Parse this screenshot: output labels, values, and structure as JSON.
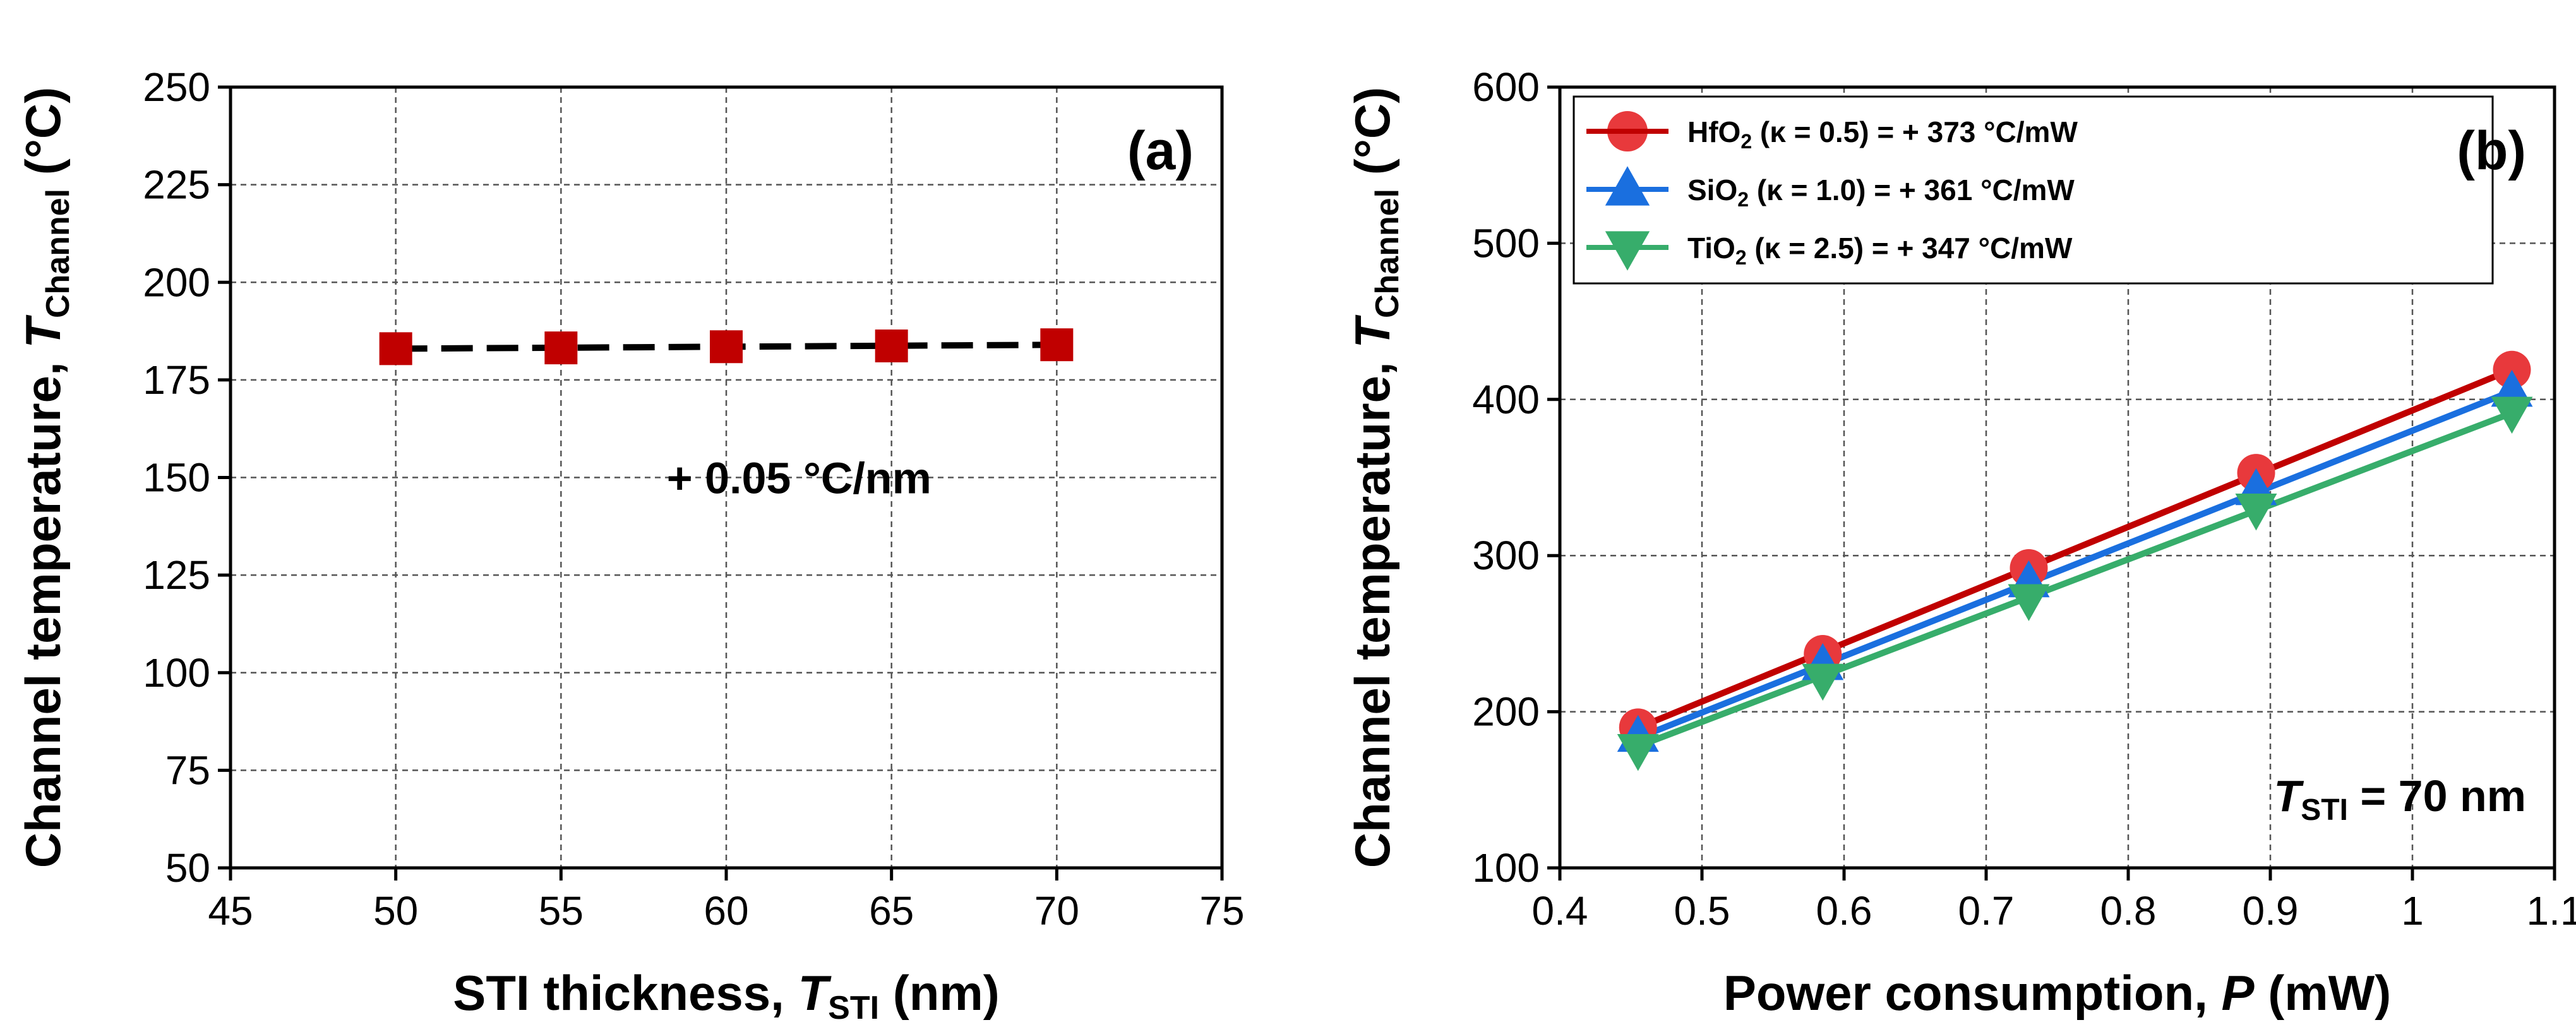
{
  "chart_data": [
    {
      "type": "scatter",
      "panel": "a",
      "panel_label": "(a)",
      "x": [
        50,
        55,
        60,
        65,
        70
      ],
      "series": [
        {
          "name": "T_Channel",
          "values": [
            183,
            183.2,
            183.5,
            183.7,
            184
          ],
          "color": "#c00000",
          "marker": "square"
        }
      ],
      "fit": {
        "slope": 0.05,
        "intercept": 180.5,
        "style": "dashed",
        "color": "#000000"
      },
      "annotation": "+ 0.05 °C/nm",
      "xlim": [
        45,
        75
      ],
      "ylim": [
        50,
        250
      ],
      "x_ticks": [
        45,
        50,
        55,
        60,
        65,
        70,
        75
      ],
      "y_ticks": [
        50,
        75,
        100,
        125,
        150,
        175,
        200,
        225,
        250
      ],
      "xlabel": {
        "main": "STI thickness, ",
        "var": "T",
        "sub": "STI",
        "unit": " (nm)"
      },
      "ylabel": {
        "main": "Channel temperature, ",
        "var": "T",
        "sub": "Channel",
        "unit": " (°C)"
      },
      "grid": true
    },
    {
      "type": "scatter",
      "panel": "b",
      "panel_label": "(b)",
      "x": [
        0.455,
        0.585,
        0.73,
        0.89,
        1.07
      ],
      "series": [
        {
          "name": "HfO2",
          "formula": "HfO",
          "formula_sub": "2",
          "kappa_text": " (κ = 0.5) = + 373 °C/mW",
          "values": [
            190,
            237,
            292,
            353,
            419
          ],
          "color": "#e8393c",
          "line_color": "#c00000",
          "marker": "circle",
          "fit": {
            "slope": 373,
            "intercept": 20
          }
        },
        {
          "name": "SiO2",
          "formula": "SiO",
          "formula_sub": "2",
          "kappa_text": " (κ = 1.0) = + 361 °C/mW",
          "values": [
            184,
            230,
            283,
            342,
            405
          ],
          "color": "#1a6fdf",
          "line_color": "#1a6fdf",
          "marker": "triangle-up",
          "fit": {
            "slope": 361,
            "intercept": 19
          }
        },
        {
          "name": "TiO2",
          "formula": "TiO",
          "formula_sub": "2",
          "kappa_text": " (κ = 2.5) = + 347 °C/mW",
          "values": [
            176,
            221,
            272,
            330,
            392
          ],
          "color": "#37ad6b",
          "line_color": "#37ad6b",
          "marker": "triangle-down",
          "fit": {
            "slope": 347,
            "intercept": 20
          }
        }
      ],
      "annotation": {
        "var": "T",
        "sub": "STI",
        "text": " = 70 nm"
      },
      "xlim": [
        0.4,
        1.1
      ],
      "ylim": [
        100,
        600
      ],
      "x_ticks": [
        0.4,
        0.5,
        0.6,
        0.7,
        0.8,
        0.9,
        1,
        1.1
      ],
      "y_ticks": [
        100,
        200,
        300,
        400,
        500,
        600
      ],
      "xlabel": {
        "main": "Power consumption, ",
        "var": "P",
        "unit": " (mW)"
      },
      "ylabel": {
        "main": "Channel temperature, ",
        "var": "T",
        "sub": "Channel",
        "unit": " (°C)"
      },
      "legend_position": "top-left",
      "grid": true
    }
  ]
}
